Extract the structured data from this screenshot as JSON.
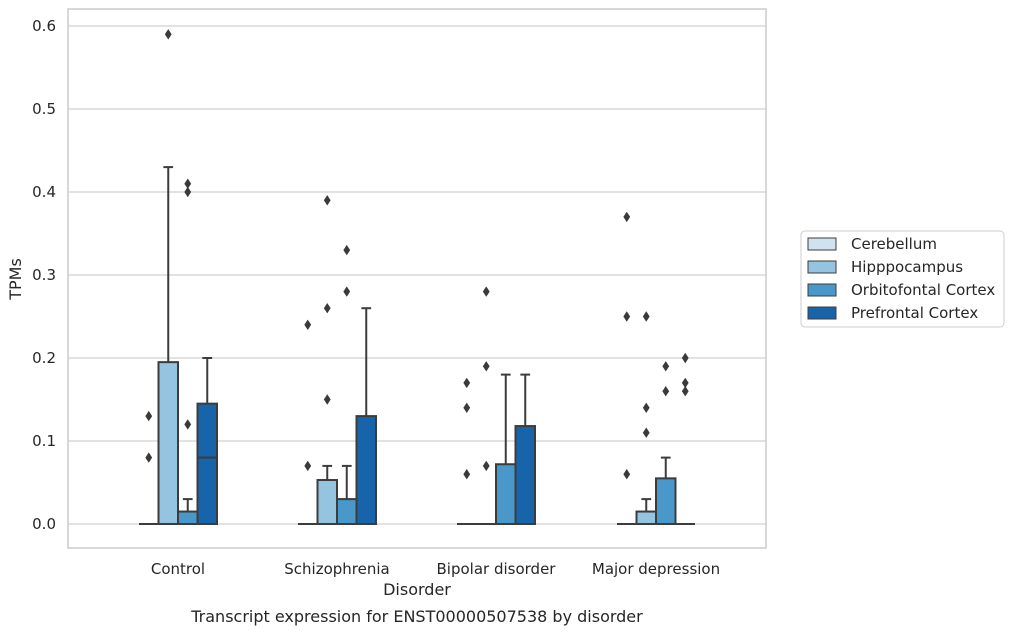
{
  "chart_data": {
    "type": "box",
    "caption": "Transcript expression for ENST00000507538 by disorder",
    "xlabel": "Disorder",
    "ylabel": "TPMs",
    "ylim": [
      -0.028,
      0.62
    ],
    "yticks": [
      "0.0",
      "0.1",
      "0.2",
      "0.3",
      "0.4",
      "0.5",
      "0.6"
    ],
    "categories": [
      "Control",
      "Schizophrenia",
      "Bipolar disorder",
      "Major depression"
    ],
    "grid": true,
    "legend_position": "right",
    "series": [
      {
        "name": "Cerebellum",
        "color": "#d0e1f2",
        "boxes": [
          {
            "q1": 0,
            "median": 0,
            "q3": 0,
            "whisker_low": 0,
            "whisker_high": 0,
            "outliers": [
              0.08,
              0.13
            ]
          },
          {
            "q1": 0,
            "median": 0,
            "q3": 0,
            "whisker_low": 0,
            "whisker_high": 0,
            "outliers": [
              0.07,
              0.24
            ]
          },
          {
            "q1": 0,
            "median": 0,
            "q3": 0,
            "whisker_low": 0,
            "whisker_high": 0,
            "outliers": [
              0.06,
              0.14,
              0.17
            ]
          },
          {
            "q1": 0,
            "median": 0,
            "q3": 0,
            "whisker_low": 0,
            "whisker_high": 0,
            "outliers": [
              0.06,
              0.25,
              0.37
            ]
          }
        ]
      },
      {
        "name": "Hipppocampus",
        "color": "#94c4df",
        "boxes": [
          {
            "q1": 0,
            "median": 0,
            "q3": 0.195,
            "whisker_low": 0,
            "whisker_high": 0.43,
            "outliers": [
              0.59
            ]
          },
          {
            "q1": 0,
            "median": 0,
            "q3": 0.053,
            "whisker_low": 0,
            "whisker_high": 0.07,
            "outliers": [
              0.15,
              0.26,
              0.39
            ]
          },
          {
            "q1": 0,
            "median": 0,
            "q3": 0,
            "whisker_low": 0,
            "whisker_high": 0,
            "outliers": [
              0.07,
              0.19,
              0.28
            ]
          },
          {
            "q1": 0,
            "median": 0,
            "q3": 0.015,
            "whisker_low": 0,
            "whisker_high": 0.03,
            "outliers": [
              0.11,
              0.14,
              0.25
            ]
          }
        ]
      },
      {
        "name": "Orbitofontal Cortex",
        "color": "#4a98c9",
        "boxes": [
          {
            "q1": 0,
            "median": 0,
            "q3": 0.015,
            "whisker_low": 0,
            "whisker_high": 0.03,
            "outliers": [
              0.12,
              0.4,
              0.41
            ]
          },
          {
            "q1": 0,
            "median": 0,
            "q3": 0.03,
            "whisker_low": 0,
            "whisker_high": 0.07,
            "outliers": [
              0.28,
              0.33
            ]
          },
          {
            "q1": 0,
            "median": 0,
            "q3": 0.072,
            "whisker_low": 0,
            "whisker_high": 0.18,
            "outliers": []
          },
          {
            "q1": 0,
            "median": 0,
            "q3": 0.055,
            "whisker_low": 0,
            "whisker_high": 0.08,
            "outliers": [
              0.16,
              0.19
            ]
          }
        ]
      },
      {
        "name": "Prefrontal Cortex",
        "color": "#1764ab",
        "boxes": [
          {
            "q1": 0,
            "median": 0.08,
            "q3": 0.145,
            "whisker_low": 0,
            "whisker_high": 0.2,
            "outliers": []
          },
          {
            "q1": 0,
            "median": 0,
            "q3": 0.13,
            "whisker_low": 0,
            "whisker_high": 0.26,
            "outliers": []
          },
          {
            "q1": 0,
            "median": 0,
            "q3": 0.118,
            "whisker_low": 0,
            "whisker_high": 0.18,
            "outliers": []
          },
          {
            "q1": 0,
            "median": 0,
            "q3": 0,
            "whisker_low": 0,
            "whisker_high": 0,
            "outliers": [
              0.16,
              0.17,
              0.2
            ]
          }
        ]
      }
    ]
  }
}
